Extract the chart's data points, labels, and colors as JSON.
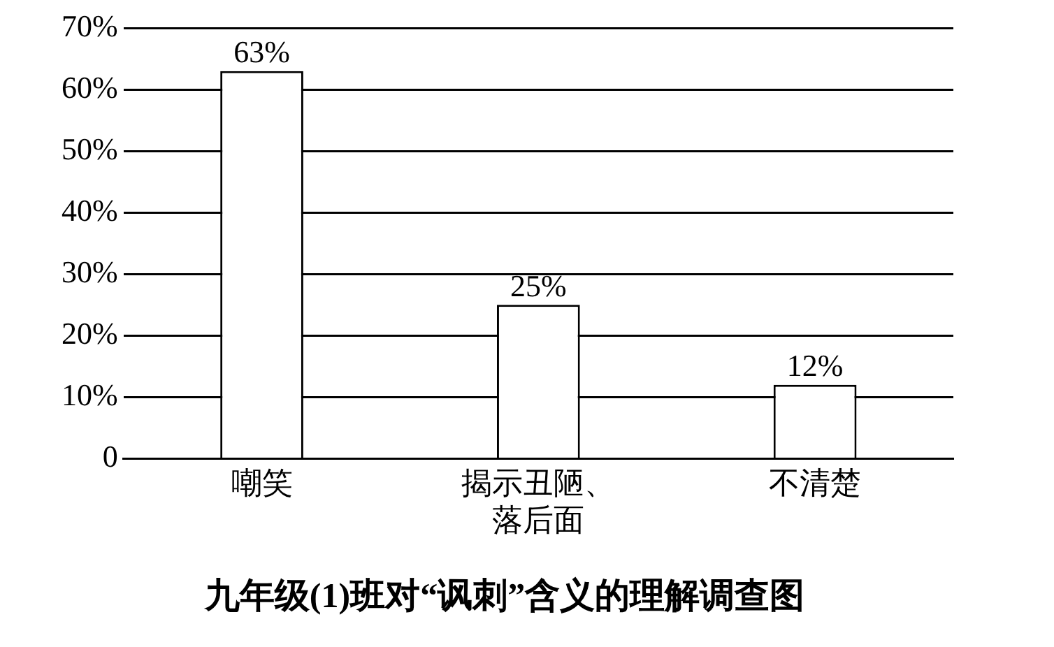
{
  "chart_data": {
    "type": "bar",
    "title": "九年级(1)班对“讽刺”含义的理解调查图",
    "categories": [
      "嘲笑",
      "揭示丑陋、落后面",
      "不清楚"
    ],
    "values": [
      63,
      25,
      12
    ],
    "value_labels": [
      "63%",
      "25%",
      "12%"
    ],
    "color": "#ffffff",
    "ylim": [
      0,
      70
    ],
    "yticks": [
      {
        "value": 0,
        "label": "0"
      },
      {
        "value": 10,
        "label": "10%"
      },
      {
        "value": 20,
        "label": "20%"
      },
      {
        "value": 30,
        "label": "30%"
      },
      {
        "value": 40,
        "label": "40%"
      },
      {
        "value": 50,
        "label": "50%"
      },
      {
        "value": 60,
        "label": "60%"
      },
      {
        "value": 70,
        "label": "70%"
      }
    ],
    "grid": "y",
    "legend": false
  }
}
